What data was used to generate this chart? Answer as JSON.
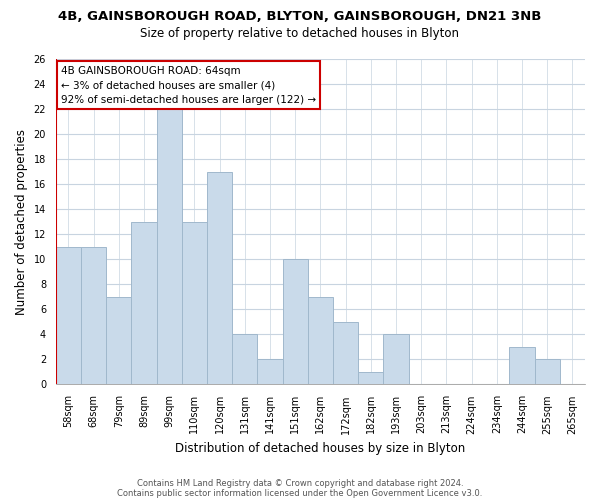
{
  "title_main": "4B, GAINSBOROUGH ROAD, BLYTON, GAINSBOROUGH, DN21 3NB",
  "title_sub": "Size of property relative to detached houses in Blyton",
  "xlabel": "Distribution of detached houses by size in Blyton",
  "ylabel": "Number of detached properties",
  "categories": [
    "58sqm",
    "68sqm",
    "79sqm",
    "89sqm",
    "99sqm",
    "110sqm",
    "120sqm",
    "131sqm",
    "141sqm",
    "151sqm",
    "162sqm",
    "172sqm",
    "182sqm",
    "193sqm",
    "203sqm",
    "213sqm",
    "224sqm",
    "234sqm",
    "244sqm",
    "255sqm",
    "265sqm"
  ],
  "values": [
    11,
    11,
    7,
    13,
    22,
    13,
    17,
    4,
    2,
    10,
    7,
    5,
    1,
    4,
    0,
    0,
    0,
    0,
    3,
    2,
    0
  ],
  "bar_color": "#c9daea",
  "bar_edge_color": "#a0b8cc",
  "ylim": [
    0,
    26
  ],
  "yticks": [
    0,
    2,
    4,
    6,
    8,
    10,
    12,
    14,
    16,
    18,
    20,
    22,
    24,
    26
  ],
  "annotation_title": "4B GAINSBOROUGH ROAD: 64sqm",
  "annotation_line1": "← 3% of detached houses are smaller (4)",
  "annotation_line2": "92% of semi-detached houses are larger (122) →",
  "annotation_box_color": "#ffffff",
  "annotation_box_edge": "#cc0000",
  "red_line_color": "#cc0000",
  "grid_color": "#c8d4e0",
  "footnote1": "Contains HM Land Registry data © Crown copyright and database right 2024.",
  "footnote2": "Contains public sector information licensed under the Open Government Licence v3.0.",
  "title_fontsize": 9.5,
  "subtitle_fontsize": 8.5,
  "ylabel_fontsize": 8.5,
  "xlabel_fontsize": 8.5,
  "tick_fontsize": 7,
  "annotation_fontsize": 7.5,
  "footnote_fontsize": 6
}
